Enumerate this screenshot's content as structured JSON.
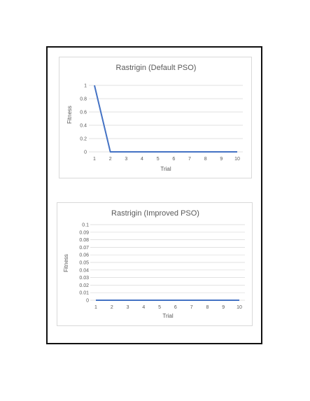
{
  "chart_data": [
    {
      "type": "line",
      "title": "Rastrigin (Default PSO)",
      "xlabel": "Trial",
      "ylabel": "Fitness",
      "categories": [
        "1",
        "2",
        "3",
        "4",
        "5",
        "6",
        "7",
        "8",
        "9",
        "10"
      ],
      "values": [
        1,
        0,
        0,
        0,
        0,
        0,
        0,
        0,
        0,
        0
      ],
      "yticks": [
        "0",
        "0.2",
        "0.4",
        "0.6",
        "0.8",
        "1"
      ],
      "ylim": [
        0,
        1
      ],
      "grid": true,
      "line_color": "#4472c4"
    },
    {
      "type": "line",
      "title": "Rastrigin (Improved PSO)",
      "xlabel": "Trial",
      "ylabel": "Fitness",
      "categories": [
        "1",
        "2",
        "3",
        "4",
        "5",
        "6",
        "7",
        "8",
        "9",
        "10"
      ],
      "values": [
        0,
        0,
        0,
        0,
        0,
        0,
        0,
        0,
        0,
        0
      ],
      "yticks": [
        "0",
        "0.01",
        "0.02",
        "0.03",
        "0.04",
        "0.05",
        "0.06",
        "0.07",
        "0.08",
        "0.09",
        "0.1"
      ],
      "ylim": [
        0,
        0.1
      ],
      "grid": true,
      "line_color": "#4472c4"
    }
  ]
}
